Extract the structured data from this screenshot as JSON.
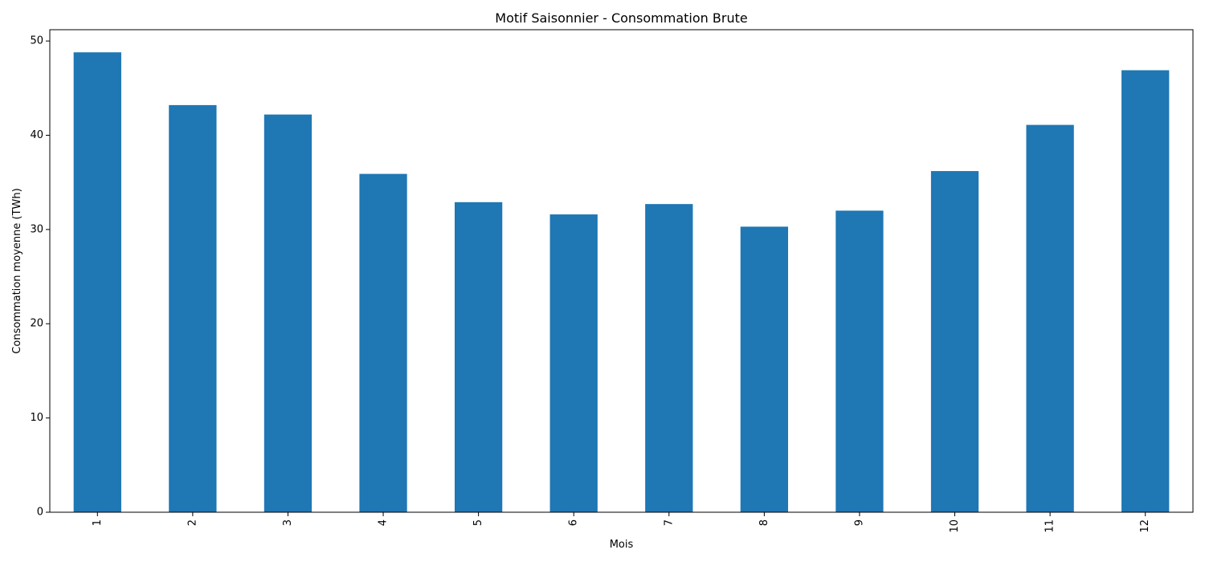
{
  "chart_data": {
    "type": "bar",
    "title": "Motif Saisonnier - Consommation Brute",
    "xlabel": "Mois",
    "ylabel": "Consommation moyenne (TWh)",
    "categories": [
      "1",
      "2",
      "3",
      "4",
      "5",
      "6",
      "7",
      "8",
      "9",
      "10",
      "11",
      "12"
    ],
    "values": [
      48.8,
      43.2,
      42.2,
      35.9,
      32.9,
      31.6,
      32.7,
      30.3,
      32.0,
      36.2,
      41.1,
      46.9
    ],
    "ylim": [
      0,
      51.2
    ],
    "yticks": [
      0,
      10,
      20,
      30,
      40,
      50
    ],
    "grid": false,
    "bar_color": "#1f77b4",
    "x_tick_rotation": "vertical"
  }
}
